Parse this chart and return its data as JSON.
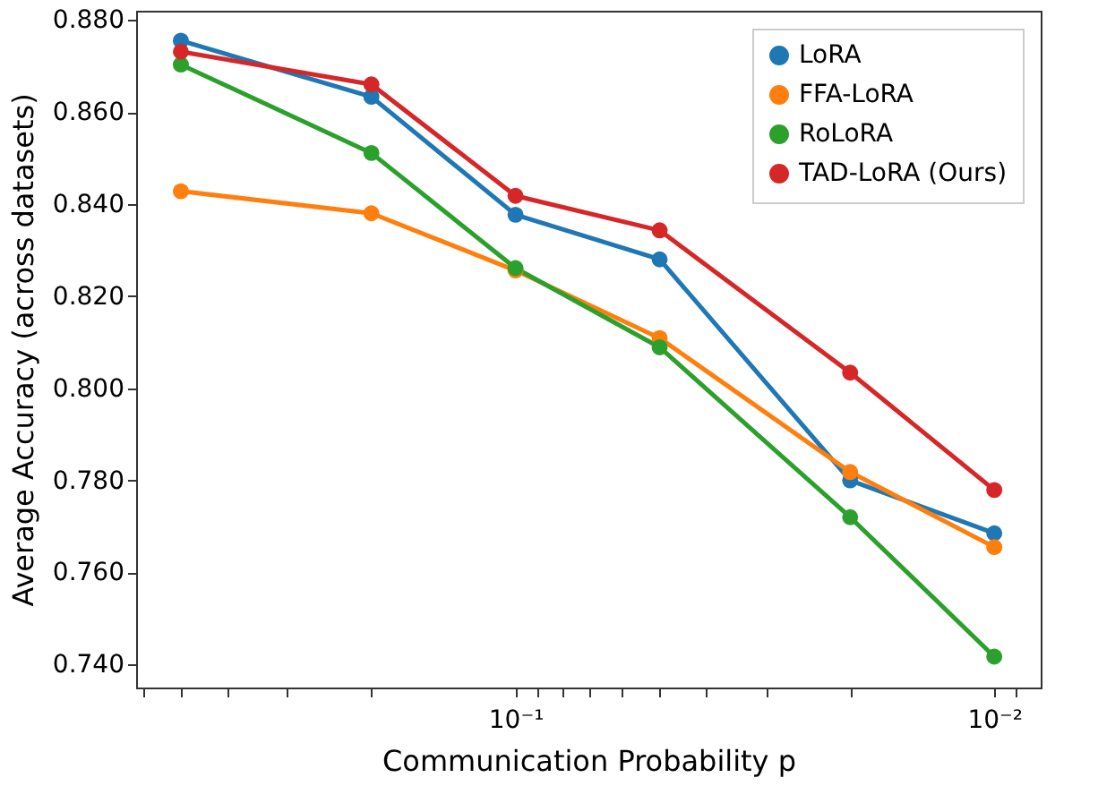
{
  "chart_data": {
    "type": "line",
    "xlabel": "Communication Probability p",
    "ylabel": "Average Accuracy (across datasets)",
    "x": [
      0.5,
      0.2,
      0.1,
      0.05,
      0.02,
      0.01
    ],
    "series": [
      {
        "name": "LoRA",
        "color": "#1f77b4",
        "values": [
          0.8755,
          0.8633,
          0.8377,
          0.828,
          0.78,
          0.7685
        ]
      },
      {
        "name": "FFA-LoRA",
        "color": "#ff7f0e",
        "values": [
          0.8428,
          0.838,
          0.8256,
          0.8109,
          0.7818,
          0.7655
        ]
      },
      {
        "name": "RoLoRA",
        "color": "#2ca02c",
        "values": [
          0.8703,
          0.8511,
          0.8261,
          0.8089,
          0.772,
          0.7417
        ]
      },
      {
        "name": "TAD-LoRA (Ours)",
        "color": "#d62728",
        "values": [
          0.8731,
          0.866,
          0.8418,
          0.8343,
          0.8034,
          0.7779
        ]
      }
    ],
    "log": "x",
    "xlim": [
      0.62,
      0.008
    ],
    "xticks": [
      {
        "value": 0.6,
        "label": null
      },
      {
        "value": 0.5,
        "label": null
      },
      {
        "value": 0.4,
        "label": null
      },
      {
        "value": 0.3,
        "label": null
      },
      {
        "value": 0.2,
        "label": null
      },
      {
        "value": 0.1,
        "label": "10⁻¹"
      },
      {
        "value": 0.09,
        "label": null
      },
      {
        "value": 0.08,
        "label": null
      },
      {
        "value": 0.07,
        "label": null
      },
      {
        "value": 0.06,
        "label": null
      },
      {
        "value": 0.05,
        "label": null
      },
      {
        "value": 0.04,
        "label": null
      },
      {
        "value": 0.03,
        "label": null
      },
      {
        "value": 0.02,
        "label": null
      },
      {
        "value": 0.01,
        "label": "10⁻²"
      },
      {
        "value": 0.009,
        "label": null
      }
    ],
    "ylim": [
      0.735,
      0.882
    ],
    "yticks": [
      {
        "value": 0.74,
        "label": "0.740"
      },
      {
        "value": 0.76,
        "label": "0.760"
      },
      {
        "value": 0.78,
        "label": "0.780"
      },
      {
        "value": 0.8,
        "label": "0.800"
      },
      {
        "value": 0.82,
        "label": "0.820"
      },
      {
        "value": 0.84,
        "label": "0.840"
      },
      {
        "value": 0.86,
        "label": "0.860"
      },
      {
        "value": 0.88,
        "label": "0.880"
      }
    ],
    "grid": false,
    "legend": "top right",
    "marker": "circle",
    "line_style": "solid"
  }
}
